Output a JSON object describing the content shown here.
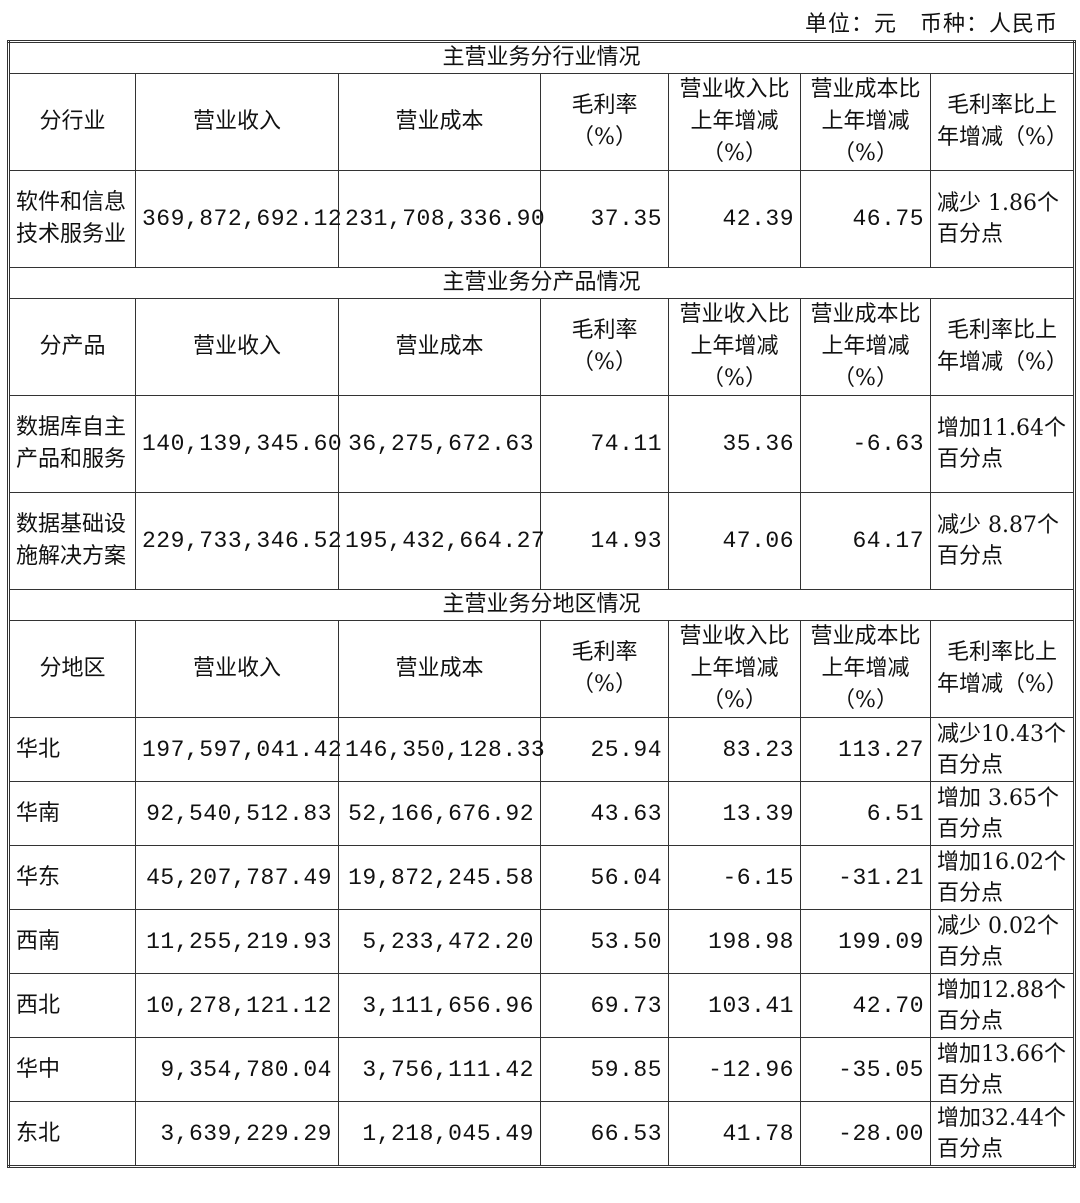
{
  "unit_note": "单位：元　币种：人民币",
  "columns": [
    "营业收入",
    "营业成本",
    "毛利率（%）",
    "营业收入比上年增减（%）",
    "营业成本比上年增减（%）",
    "毛利率比上年增减（%）"
  ],
  "sections": [
    {
      "title": "主营业务分行业情况",
      "first_col": "分行业",
      "rows": [
        {
          "name": "软件和信息技术服务业",
          "revenue": "369,872,692.12",
          "cost": "231,708,336.90",
          "margin": "37.35",
          "rev_change": "42.39",
          "cost_change": "46.75",
          "margin_change": "减少 1.86个百分点"
        }
      ]
    },
    {
      "title": "主营业务分产品情况",
      "first_col": "分产品",
      "rows": [
        {
          "name": "数据库自主产品和服务",
          "revenue": "140,139,345.60",
          "cost": "36,275,672.63",
          "margin": "74.11",
          "rev_change": "35.36",
          "cost_change": "-6.63",
          "margin_change": "增加11.64个百分点"
        },
        {
          "name": "数据基础设施解决方案",
          "revenue": "229,733,346.52",
          "cost": "195,432,664.27",
          "margin": "14.93",
          "rev_change": "47.06",
          "cost_change": "64.17",
          "margin_change": "减少 8.87个百分点"
        }
      ]
    },
    {
      "title": "主营业务分地区情况",
      "first_col": "分地区",
      "rows": [
        {
          "name": "华北",
          "revenue": "197,597,041.42",
          "cost": "146,350,128.33",
          "margin": "25.94",
          "rev_change": "83.23",
          "cost_change": "113.27",
          "margin_change": "减少10.43个百分点"
        },
        {
          "name": "华南",
          "revenue": "92,540,512.83",
          "cost": "52,166,676.92",
          "margin": "43.63",
          "rev_change": "13.39",
          "cost_change": "6.51",
          "margin_change": "增加 3.65个百分点"
        },
        {
          "name": "华东",
          "revenue": "45,207,787.49",
          "cost": "19,872,245.58",
          "margin": "56.04",
          "rev_change": "-6.15",
          "cost_change": "-31.21",
          "margin_change": "增加16.02个百分点"
        },
        {
          "name": "西南",
          "revenue": "11,255,219.93",
          "cost": "5,233,472.20",
          "margin": "53.50",
          "rev_change": "198.98",
          "cost_change": "199.09",
          "margin_change": "减少 0.02个百分点"
        },
        {
          "name": "西北",
          "revenue": "10,278,121.12",
          "cost": "3,111,656.96",
          "margin": "69.73",
          "rev_change": "103.41",
          "cost_change": "42.70",
          "margin_change": "增加12.88个百分点"
        },
        {
          "name": "华中",
          "revenue": "9,354,780.04",
          "cost": "3,756,111.42",
          "margin": "59.85",
          "rev_change": "-12.96",
          "cost_change": "-35.05",
          "margin_change": "增加13.66个百分点"
        },
        {
          "name": "东北",
          "revenue": "3,639,229.29",
          "cost": "1,218,045.49",
          "margin": "66.53",
          "rev_change": "41.78",
          "cost_change": "-28.00",
          "margin_change": "增加32.44个百分点"
        }
      ]
    }
  ]
}
